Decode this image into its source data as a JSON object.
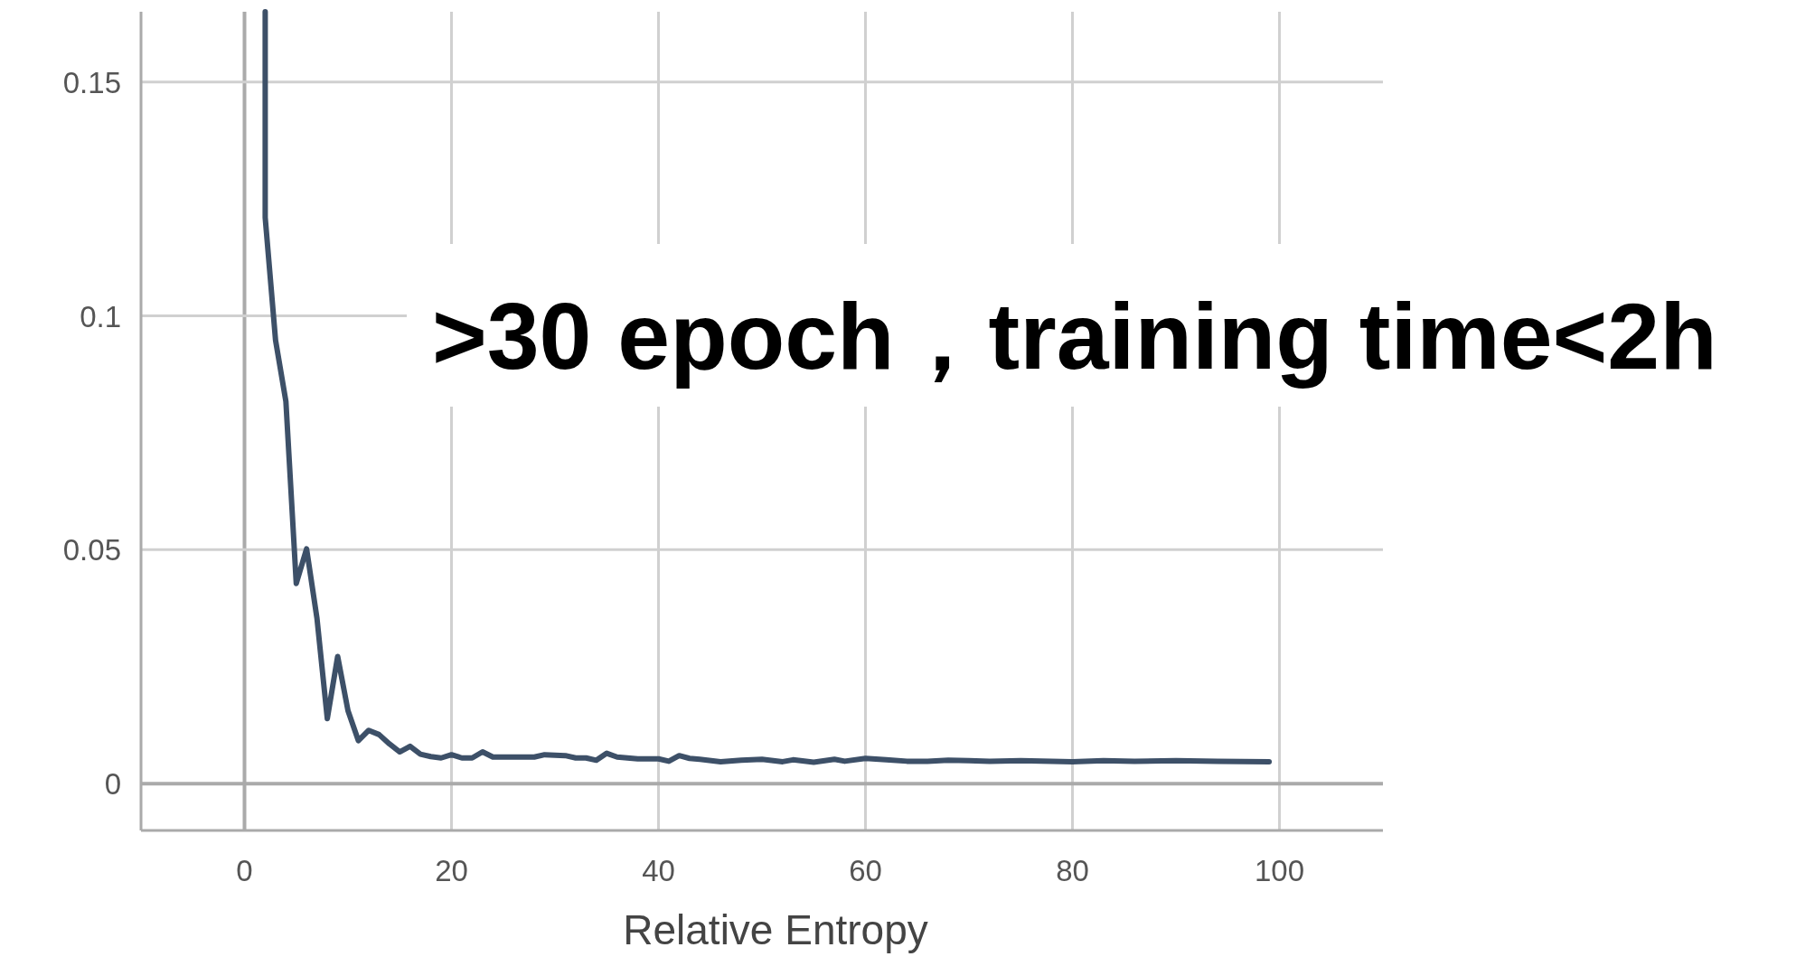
{
  "chart_data": {
    "type": "line",
    "xlabel": "Relative Entropy",
    "annotations": [
      ">30 epoch，training time<2h"
    ],
    "xlim": [
      -10,
      110
    ],
    "ylim": [
      -0.01,
      0.165
    ],
    "xticks": [
      0,
      20,
      40,
      60,
      80,
      100
    ],
    "yticks": [
      0,
      0.05,
      0.1,
      0.15
    ],
    "grid": true,
    "marker": "none",
    "line_style": "solid",
    "series": [
      {
        "color": "#3d5068",
        "x": [
          2,
          2,
          3,
          4,
          5,
          6,
          7,
          8,
          9,
          10,
          11,
          12,
          13,
          14,
          15,
          16,
          17,
          18,
          19,
          20,
          21,
          22,
          23,
          24,
          26,
          28,
          29,
          31,
          32,
          33,
          34,
          35,
          36,
          38,
          40,
          41,
          42,
          43,
          44,
          46,
          48,
          50,
          52,
          53,
          55,
          57,
          58,
          60,
          62,
          64,
          66,
          68,
          70,
          72,
          75,
          78,
          80,
          83,
          86,
          90,
          94,
          99
        ],
        "values": [
          0.165,
          0.121,
          0.0948,
          0.0817,
          0.0428,
          0.0502,
          0.0354,
          0.0139,
          0.0272,
          0.0156,
          0.0092,
          0.0114,
          0.0105,
          0.0085,
          0.0068,
          0.008,
          0.0063,
          0.0058,
          0.0055,
          0.0062,
          0.0055,
          0.0055,
          0.0068,
          0.0057,
          0.0057,
          0.0057,
          0.0062,
          0.006,
          0.0055,
          0.0055,
          0.005,
          0.0065,
          0.0057,
          0.0053,
          0.0053,
          0.0048,
          0.006,
          0.0054,
          0.0052,
          0.0047,
          0.005,
          0.0052,
          0.0047,
          0.0051,
          0.0046,
          0.0052,
          0.0048,
          0.0054,
          0.0051,
          0.0048,
          0.0048,
          0.005,
          0.0049,
          0.0048,
          0.0049,
          0.0048,
          0.0047,
          0.0049,
          0.0048,
          0.0049,
          0.0048,
          0.0047
        ]
      }
    ]
  }
}
